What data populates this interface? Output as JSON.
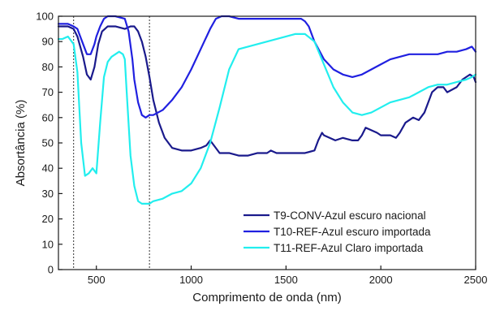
{
  "chart_data": {
    "type": "line",
    "title": "",
    "xlabel": "Comprimento de onda (nm)",
    "ylabel": "Absortância (%)",
    "xlim": [
      300,
      2500
    ],
    "ylim": [
      0,
      100
    ],
    "xticks": [
      500,
      1000,
      1500,
      2000,
      2500
    ],
    "xtick_labels": [
      "500",
      "1000",
      "1500",
      "2000",
      "2500"
    ],
    "yticks": [
      0,
      10,
      20,
      30,
      40,
      50,
      60,
      70,
      80,
      90,
      100
    ],
    "ytick_labels": [
      "0",
      "10",
      "20",
      "30",
      "40",
      "50",
      "60",
      "70",
      "80",
      "90",
      "100"
    ],
    "grid": false,
    "legend_position": "bottom-right",
    "vertical_reference_lines": [
      380,
      780
    ],
    "series": [
      {
        "name": "T9-CONV-Azul escuro nacional",
        "color": "#1a1a8c",
        "x": [
          300,
          350,
          380,
          400,
          430,
          450,
          470,
          490,
          510,
          530,
          560,
          600,
          650,
          680,
          700,
          720,
          740,
          760,
          780,
          800,
          830,
          860,
          900,
          950,
          1000,
          1050,
          1080,
          1100,
          1120,
          1150,
          1200,
          1250,
          1300,
          1350,
          1400,
          1420,
          1450,
          1500,
          1550,
          1600,
          1650,
          1670,
          1690,
          1700,
          1730,
          1760,
          1800,
          1850,
          1880,
          1900,
          1920,
          1950,
          1980,
          2000,
          2050,
          2080,
          2100,
          2130,
          2150,
          2170,
          2200,
          2230,
          2250,
          2270,
          2300,
          2330,
          2350,
          2400,
          2430,
          2450,
          2470,
          2490,
          2500
        ],
        "y": [
          96,
          96,
          95,
          92,
          84,
          77,
          75,
          80,
          89,
          94,
          96,
          96,
          95,
          96,
          96,
          94,
          90,
          84,
          76,
          67,
          58,
          52,
          48,
          47,
          47,
          48,
          49,
          51,
          49,
          46,
          46,
          45,
          45,
          46,
          46,
          47,
          46,
          46,
          46,
          46,
          47,
          51,
          54,
          53,
          52,
          51,
          52,
          51,
          51,
          53,
          56,
          55,
          54,
          53,
          53,
          52,
          54,
          58,
          59,
          60,
          59,
          62,
          66,
          70,
          72,
          72,
          70,
          72,
          75,
          76,
          77,
          76,
          74
        ]
      },
      {
        "name": "T10-REF-Azul escuro importada",
        "color": "#2020e0",
        "x": [
          300,
          350,
          380,
          400,
          430,
          450,
          470,
          490,
          500,
          520,
          540,
          560,
          600,
          650,
          670,
          690,
          700,
          720,
          740,
          760,
          780,
          800,
          850,
          900,
          950,
          1000,
          1050,
          1100,
          1130,
          1160,
          1200,
          1250,
          1300,
          1350,
          1400,
          1450,
          1500,
          1550,
          1580,
          1600,
          1620,
          1650,
          1700,
          1750,
          1800,
          1850,
          1900,
          1950,
          2000,
          2050,
          2100,
          2150,
          2200,
          2250,
          2300,
          2350,
          2400,
          2450,
          2480,
          2500
        ],
        "y": [
          97,
          97,
          96,
          95,
          89,
          85,
          85,
          89,
          92,
          96,
          99,
          100,
          100,
          99,
          94,
          83,
          75,
          66,
          61,
          60,
          61,
          61,
          63,
          67,
          72,
          79,
          87,
          95,
          99,
          100,
          100,
          99,
          99,
          99,
          99,
          99,
          99,
          99,
          99,
          98,
          96,
          90,
          83,
          79,
          77,
          76,
          77,
          79,
          81,
          83,
          84,
          85,
          85,
          85,
          85,
          86,
          86,
          87,
          88,
          86
        ]
      },
      {
        "name": "T11-REF-Azul Claro importada",
        "color": "#22eeee",
        "x": [
          300,
          320,
          350,
          380,
          400,
          420,
          440,
          460,
          480,
          500,
          520,
          540,
          560,
          580,
          600,
          620,
          640,
          650,
          660,
          680,
          700,
          720,
          740,
          760,
          780,
          800,
          850,
          900,
          950,
          1000,
          1050,
          1100,
          1150,
          1200,
          1250,
          1300,
          1350,
          1400,
          1450,
          1500,
          1550,
          1600,
          1650,
          1700,
          1750,
          1800,
          1850,
          1900,
          1950,
          2000,
          2050,
          2100,
          2150,
          2200,
          2250,
          2300,
          2350,
          2400,
          2450,
          2480,
          2500
        ],
        "y": [
          91,
          91,
          92,
          89,
          78,
          50,
          37,
          38,
          40,
          38,
          58,
          76,
          82,
          84,
          85,
          86,
          85,
          83,
          70,
          45,
          33,
          27,
          26,
          26,
          26,
          27,
          28,
          30,
          31,
          34,
          40,
          50,
          64,
          79,
          87,
          88,
          89,
          90,
          91,
          92,
          93,
          93,
          90,
          81,
          72,
          66,
          62,
          61,
          62,
          64,
          66,
          67,
          68,
          70,
          72,
          73,
          73,
          74,
          75,
          76,
          77
        ]
      }
    ]
  }
}
